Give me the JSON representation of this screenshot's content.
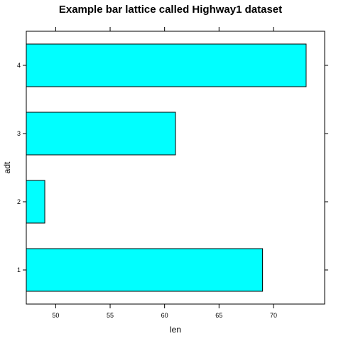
{
  "chart_data": {
    "type": "bar",
    "orientation": "horizontal",
    "title": "Example bar lattice called Highway1 dataset",
    "xlabel": "len",
    "ylabel": "adt",
    "categories": [
      "1",
      "2",
      "3",
      "4"
    ],
    "values": [
      69,
      49,
      61,
      73
    ],
    "xlim": [
      47.3,
      74.7
    ],
    "xticks": [
      50,
      55,
      60,
      65,
      70
    ],
    "grid": false,
    "colors": {
      "bar_fill": "#00ffff",
      "bar_stroke": "#000000",
      "axis": "#000000"
    }
  }
}
